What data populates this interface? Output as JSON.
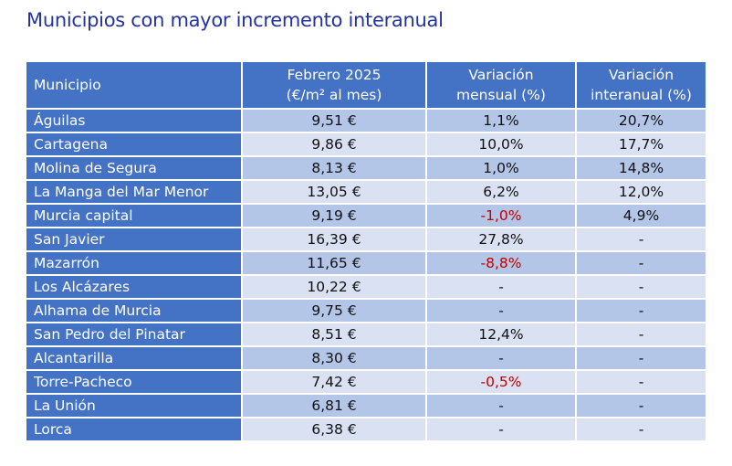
{
  "title": "Municipios con mayor incremento interanual",
  "table": {
    "headers": {
      "municipio": "Municipio",
      "precio_line1": "Febrero 2025",
      "precio_line2": "(€/m² al mes)",
      "mensual_line1": "Variación",
      "mensual_line2": "mensual (%)",
      "interanual_line1": "Variación",
      "interanual_line2": "interanual (%)"
    },
    "rows": [
      {
        "municipio": "Águilas",
        "precio": "9,51 €",
        "mensual": "1,1%",
        "interanual": "20,7%"
      },
      {
        "municipio": "Cartagena",
        "precio": "9,86 €",
        "mensual": "10,0%",
        "interanual": "17,7%"
      },
      {
        "municipio": "Molina de Segura",
        "precio": "8,13 €",
        "mensual": "1,0%",
        "interanual": "14,8%"
      },
      {
        "municipio": "La Manga del Mar Menor",
        "precio": "13,05 €",
        "mensual": "6,2%",
        "interanual": "12,0%"
      },
      {
        "municipio": "Murcia capital",
        "precio": "9,19 €",
        "mensual": "-1,0%",
        "interanual": "4,9%"
      },
      {
        "municipio": "San Javier",
        "precio": "16,39 €",
        "mensual": "27,8%",
        "interanual": "-"
      },
      {
        "municipio": "Mazarrón",
        "precio": "11,65 €",
        "mensual": "-8,8%",
        "interanual": "-"
      },
      {
        "municipio": "Los Alcázares",
        "precio": "10,22 €",
        "mensual": "-",
        "interanual": "-"
      },
      {
        "municipio": "Alhama de Murcia",
        "precio": "9,75 €",
        "mensual": "-",
        "interanual": "-"
      },
      {
        "municipio": "San Pedro del Pinatar",
        "precio": "8,51 €",
        "mensual": "12,4%",
        "interanual": "-"
      },
      {
        "municipio": "Alcantarilla",
        "precio": "8,30 €",
        "mensual": "-",
        "interanual": "-"
      },
      {
        "municipio": "Torre-Pacheco",
        "precio": "7,42 €",
        "mensual": "-0,5%",
        "interanual": "-"
      },
      {
        "municipio": "La Unión",
        "precio": "6,81 €",
        "mensual": "-",
        "interanual": "-"
      },
      {
        "municipio": "Lorca",
        "precio": "6,38 €",
        "mensual": "-",
        "interanual": "-"
      }
    ]
  },
  "colors": {
    "title": "#2233a0",
    "header_bg": "#4472c4",
    "row_odd": "#b4c6e7",
    "row_even": "#d9e1f2",
    "negative": "#c00000"
  }
}
